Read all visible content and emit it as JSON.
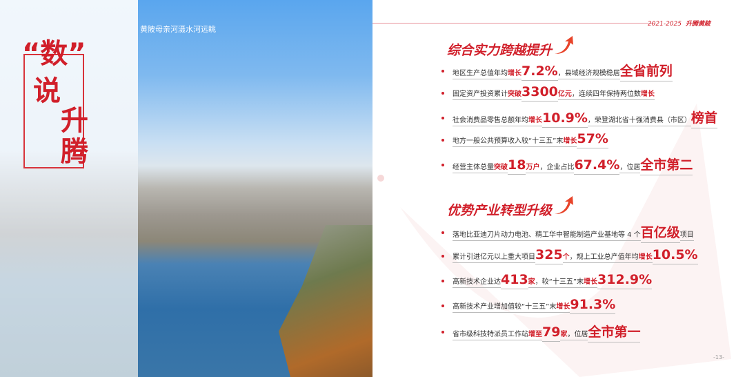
{
  "left": {
    "title_chars": [
      "“数”",
      "说",
      "升",
      "腾"
    ]
  },
  "photo": {
    "caption": "黄陂母亲河滠水河远眺"
  },
  "header": {
    "years": "2021-2025",
    "brand": "升腾黄陂"
  },
  "sections": [
    {
      "title": "综合实力跨越提升",
      "rows": [
        [
          {
            "t": "地区生产总值年均",
            "s": "n"
          },
          {
            "t": "增长",
            "s": "r"
          },
          {
            "t": "7.2%",
            "s": "b"
          },
          {
            "t": "，县域经济规模稳居",
            "s": "n"
          },
          {
            "t": "全省前列",
            "s": "b"
          }
        ],
        [
          {
            "t": "固定资产投资累计",
            "s": "n"
          },
          {
            "t": "突破",
            "s": "r"
          },
          {
            "t": "3300",
            "s": "b"
          },
          {
            "t": "亿元",
            "s": "r"
          },
          {
            "t": "，连续四年保持两位数",
            "s": "n"
          },
          {
            "t": "增长",
            "s": "r"
          }
        ],
        [
          {
            "t": "社会消费品零售总额年均",
            "s": "n"
          },
          {
            "t": "增长",
            "s": "r"
          },
          {
            "t": "10.9%",
            "s": "b"
          },
          {
            "t": "，荣登湖北省十强消费县（市区）",
            "s": "n"
          },
          {
            "t": "榜首",
            "s": "b"
          }
        ],
        [
          {
            "t": "地方一般公共预算收入较“十三五”末",
            "s": "n"
          },
          {
            "t": "增长",
            "s": "r"
          },
          {
            "t": "57%",
            "s": "b"
          }
        ],
        [
          {
            "t": "经营主体总量",
            "s": "n"
          },
          {
            "t": "突破",
            "s": "r"
          },
          {
            "t": "18",
            "s": "b"
          },
          {
            "t": "万户",
            "s": "r"
          },
          {
            "t": "，企业占比",
            "s": "n"
          },
          {
            "t": "67.4%",
            "s": "b"
          },
          {
            "t": "，位居",
            "s": "n"
          },
          {
            "t": "全市第二",
            "s": "b"
          }
        ]
      ]
    },
    {
      "title": "优势产业转型升级",
      "rows": [
        [
          {
            "t": "落地比亚迪刀片动力电池、精工华中智能制造产业基地等 4 个",
            "s": "n"
          },
          {
            "t": "百亿级",
            "s": "b"
          },
          {
            "t": "项目",
            "s": "n"
          }
        ],
        [
          {
            "t": "累计引进亿元以上重大项目",
            "s": "n"
          },
          {
            "t": "325",
            "s": "b"
          },
          {
            "t": "个",
            "s": "r"
          },
          {
            "t": "，规上工业总产值年均",
            "s": "n"
          },
          {
            "t": "增长",
            "s": "r"
          },
          {
            "t": "10.5%",
            "s": "b"
          }
        ],
        [
          {
            "t": "高新技术企业达",
            "s": "n"
          },
          {
            "t": "413",
            "s": "b"
          },
          {
            "t": "家",
            "s": "r"
          },
          {
            "t": "，较“十三五”末",
            "s": "n"
          },
          {
            "t": "增长",
            "s": "r"
          },
          {
            "t": "312.9%",
            "s": "b"
          }
        ],
        [
          {
            "t": "高新技术产业增加值较“十三五”末",
            "s": "n"
          },
          {
            "t": "增长",
            "s": "r"
          },
          {
            "t": "91.3%",
            "s": "b"
          }
        ],
        [
          {
            "t": "省市级科技特派员工作站",
            "s": "n"
          },
          {
            "t": "增至",
            "s": "r"
          },
          {
            "t": "79",
            "s": "b"
          },
          {
            "t": "家",
            "s": "r"
          },
          {
            "t": "，位居",
            "s": "n"
          },
          {
            "t": "全市第一",
            "s": "b"
          }
        ]
      ]
    }
  ],
  "page_number": "-13-",
  "colors": {
    "accent": "#d11f2a"
  }
}
